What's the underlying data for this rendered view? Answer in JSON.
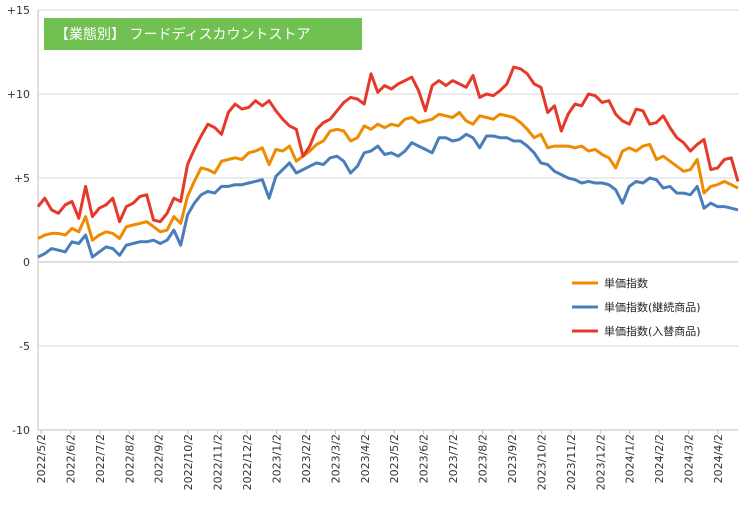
{
  "chart_data": {
    "type": "line",
    "title": "【業態別】 フードディスカウントストア",
    "y_tick_labels": [
      "+15",
      "+10",
      "+5",
      "0",
      "-5",
      "-10"
    ],
    "y_ticks": [
      15,
      10,
      5,
      0,
      -5,
      -10
    ],
    "ylim": [
      -10,
      15
    ],
    "x_tick_labels": [
      "2022/5/2",
      "2022/6/2",
      "2022/7/2",
      "2022/8/2",
      "2022/9/2",
      "2022/10/2",
      "2022/11/2",
      "2022/12/2",
      "2023/1/2",
      "2023/2/2",
      "2023/3/2",
      "2023/4/2",
      "2023/5/2",
      "2023/6/2",
      "2023/7/2",
      "2023/8/2",
      "2023/9/2",
      "2023/10/2",
      "2023/11/2",
      "2023/12/2",
      "2024/1/2",
      "2024/2/2",
      "2024/3/2",
      "2024/4/2"
    ],
    "grid": "horizontal",
    "legend_position": "bottom-right",
    "series": [
      {
        "name": "単価指数",
        "color": "#f08a00",
        "values": [
          1.4,
          1.6,
          1.7,
          1.7,
          1.6,
          2.0,
          1.8,
          2.7,
          1.3,
          1.6,
          1.8,
          1.7,
          1.4,
          2.1,
          2.2,
          2.3,
          2.4,
          2.1,
          1.8,
          1.9,
          2.7,
          2.3,
          3.9,
          4.8,
          5.6,
          5.5,
          5.3,
          6.0,
          6.1,
          6.2,
          6.1,
          6.5,
          6.6,
          6.8,
          5.8,
          6.7,
          6.6,
          6.9,
          6.0,
          6.3,
          6.6,
          7.0,
          7.2,
          7.8,
          7.9,
          7.8,
          7.2,
          7.4,
          8.1,
          7.9,
          8.2,
          8.0,
          8.2,
          8.1,
          8.5,
          8.6,
          8.3,
          8.4,
          8.5,
          8.8,
          8.7,
          8.6,
          8.9,
          8.4,
          8.2,
          8.7,
          8.6,
          8.5,
          8.8,
          8.7,
          8.6,
          8.3,
          7.9,
          7.4,
          7.6,
          6.8,
          6.9,
          6.9,
          6.9,
          6.8,
          6.9,
          6.6,
          6.7,
          6.4,
          6.2,
          5.6,
          6.6,
          6.8,
          6.6,
          6.9,
          7.0,
          6.1,
          6.3,
          6.0,
          5.7,
          5.4,
          5.5,
          6.1,
          4.1,
          4.5,
          4.6,
          4.8,
          4.6,
          4.4
        ],
        "first_x_index": 0
      },
      {
        "name": "単価指数(継続商品)",
        "color": "#4a7ebb",
        "values": [
          0.3,
          0.5,
          0.8,
          0.7,
          0.6,
          1.2,
          1.1,
          1.6,
          0.3,
          0.6,
          0.9,
          0.8,
          0.4,
          1.0,
          1.1,
          1.2,
          1.2,
          1.3,
          1.1,
          1.3,
          1.9,
          1.0,
          2.8,
          3.5,
          4.0,
          4.2,
          4.1,
          4.5,
          4.5,
          4.6,
          4.6,
          4.7,
          4.8,
          4.9,
          3.8,
          5.1,
          5.5,
          5.9,
          5.3,
          5.5,
          5.7,
          5.9,
          5.8,
          6.2,
          6.3,
          6.0,
          5.3,
          5.7,
          6.5,
          6.6,
          6.9,
          6.4,
          6.5,
          6.3,
          6.6,
          7.1,
          6.9,
          6.7,
          6.5,
          7.4,
          7.4,
          7.2,
          7.3,
          7.6,
          7.4,
          6.8,
          7.5,
          7.5,
          7.4,
          7.4,
          7.2,
          7.2,
          6.9,
          6.5,
          5.9,
          5.8,
          5.4,
          5.2,
          5.0,
          4.9,
          4.7,
          4.8,
          4.7,
          4.7,
          4.6,
          4.3,
          3.5,
          4.5,
          4.8,
          4.7,
          5.0,
          4.9,
          4.4,
          4.5,
          4.1,
          4.1,
          4.0,
          4.5,
          3.2,
          3.5,
          3.3,
          3.3,
          3.2,
          3.1
        ],
        "first_x_index": 0
      },
      {
        "name": "単価指数(入替商品)",
        "color": "#e53a2a",
        "values": [
          3.3,
          3.8,
          3.1,
          2.9,
          3.4,
          3.6,
          2.6,
          4.5,
          2.7,
          3.2,
          3.4,
          3.8,
          2.4,
          3.3,
          3.5,
          3.9,
          4.0,
          2.5,
          2.4,
          2.9,
          3.8,
          3.6,
          5.8,
          6.7,
          7.5,
          8.2,
          8.0,
          7.6,
          8.9,
          9.4,
          9.1,
          9.2,
          9.6,
          9.3,
          9.6,
          9.0,
          8.5,
          8.1,
          7.9,
          6.3,
          6.9,
          7.9,
          8.3,
          8.5,
          9.0,
          9.5,
          9.8,
          9.7,
          9.4,
          11.2,
          10.1,
          10.5,
          10.3,
          10.6,
          10.8,
          11.0,
          10.2,
          9.0,
          10.5,
          10.8,
          10.5,
          10.8,
          10.6,
          10.4,
          11.1,
          9.8,
          10.0,
          9.9,
          10.2,
          10.6,
          11.6,
          11.5,
          11.2,
          10.6,
          10.4,
          8.9,
          9.3,
          7.8,
          8.8,
          9.4,
          9.3,
          10.0,
          9.9,
          9.5,
          9.6,
          8.8,
          8.4,
          8.2,
          9.1,
          9.0,
          8.2,
          8.3,
          8.7,
          8.0,
          7.4,
          7.1,
          6.6,
          7.0,
          7.3,
          5.5,
          5.6,
          6.1,
          6.2,
          4.8
        ],
        "first_x_index": 0
      }
    ]
  }
}
